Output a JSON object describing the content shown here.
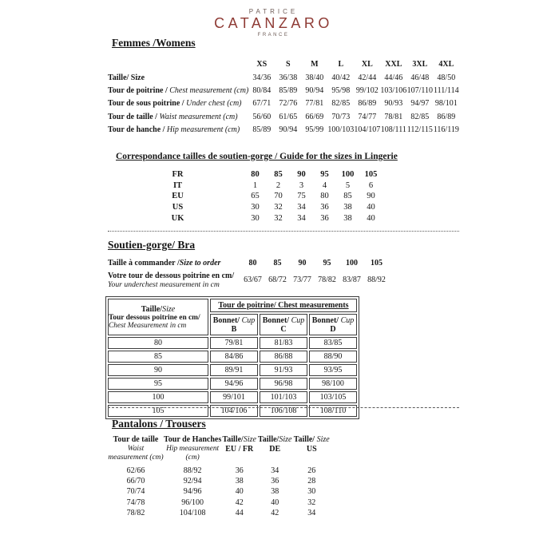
{
  "logo": {
    "top": "PATRICE",
    "main": "CATANZARO",
    "bottom": "FRANCE",
    "accent_color": "#8e3a34"
  },
  "femmes": {
    "heading": "Femmes /Womens",
    "size_headers": [
      "XS",
      "S",
      "M",
      "L",
      "XL",
      "XXL",
      "3XL",
      "4XL"
    ],
    "rows": [
      {
        "fr": "Taille/ Size",
        "en": "",
        "values": [
          "34/36",
          "36/38",
          "38/40",
          "40/42",
          "42/44",
          "44/46",
          "46/48",
          "48/50"
        ]
      },
      {
        "fr": "Tour de poitrine /",
        "en": "Chest measurement (cm)",
        "values": [
          "80/84",
          "85/89",
          "90/94",
          "95/98",
          "99/102",
          "103/106",
          "107/110",
          "111/114"
        ]
      },
      {
        "fr": "Tour de sous poitrine /",
        "en": "Under chest (cm)",
        "values": [
          "67/71",
          "72/76",
          "77/81",
          "82/85",
          "86/89",
          "90/93",
          "94/97",
          "98/101"
        ]
      },
      {
        "fr": "Tour de taille /",
        "en": "Waist measurement (cm)",
        "values": [
          "56/60",
          "61/65",
          "66/69",
          "70/73",
          "74/77",
          "78/81",
          "82/85",
          "86/89"
        ]
      },
      {
        "fr": "Tour de hanche /",
        "en": "Hip measurement (cm)",
        "values": [
          "85/89",
          "90/94",
          "95/99",
          "100/103",
          "104/107",
          "108/111",
          "112/115",
          "116/119"
        ]
      }
    ]
  },
  "lingerie": {
    "heading": "Correspondance tailles de soutien-gorge / Guide for the sizes in Lingerie",
    "rows": [
      {
        "label": "FR",
        "bold_values": true,
        "values": [
          "80",
          "85",
          "90",
          "95",
          "100",
          "105"
        ]
      },
      {
        "label": "IT",
        "bold_values": false,
        "values": [
          "1",
          "2",
          "3",
          "4",
          "5",
          "6"
        ]
      },
      {
        "label": "EU",
        "bold_values": false,
        "values": [
          "65",
          "70",
          "75",
          "80",
          "85",
          "90"
        ]
      },
      {
        "label": "US",
        "bold_values": false,
        "values": [
          "30",
          "32",
          "34",
          "36",
          "38",
          "40"
        ]
      },
      {
        "label": "UK",
        "bold_values": false,
        "values": [
          "30",
          "32",
          "34",
          "36",
          "38",
          "40"
        ]
      }
    ]
  },
  "bra": {
    "heading": "Soutien-gorge/ Bra",
    "rows": [
      {
        "fr": "Taille à commander /",
        "en": "Size to order",
        "en_inline": true,
        "bold_values": true,
        "values": [
          "80",
          "85",
          "90",
          "95",
          "100",
          "105"
        ]
      },
      {
        "fr": "Votre tour de dessous poitrine en cm/",
        "en": "Your underchest measurement in cm",
        "en_inline": false,
        "bold_values": false,
        "values": [
          "63/67",
          "68/72",
          "73/77",
          "78/82",
          "83/87",
          "88/92"
        ]
      }
    ]
  },
  "cup_table": {
    "corner": {
      "line1_fr": "Taille/",
      "line1_en": "Size",
      "line2": "Tour dessous poitrine en cm/",
      "line3": "Chest Measurement in cm"
    },
    "span_header": "Tour de poitrine/ Chest measurements",
    "cup_label_fr": "Bonnet/",
    "cup_label_en": "Cup",
    "cups": [
      "B",
      "C",
      "D"
    ],
    "rows": [
      [
        "80",
        "79/81",
        "81/83",
        "83/85"
      ],
      [
        "85",
        "84/86",
        "86/88",
        "88/90"
      ],
      [
        "90",
        "89/91",
        "91/93",
        "93/95"
      ],
      [
        "95",
        "94/96",
        "96/98",
        "98/100"
      ],
      [
        "100",
        "99/101",
        "101/103",
        "103/105"
      ],
      [
        "105",
        "104/106",
        "106/108",
        "108/110"
      ]
    ]
  },
  "trousers": {
    "heading": "Pantalons / Trousers",
    "columns": [
      {
        "fr": "Tour de taille",
        "en1": "Waist",
        "en2": "measurement (cm)"
      },
      {
        "fr": "Tour de Hanches",
        "en1": "Hip measurement",
        "en2": "(cm)"
      },
      {
        "fr": "Taille/",
        "fri": "Size",
        "sub": "EU / FR"
      },
      {
        "fr": "Taille/",
        "fri": "Size",
        "sub": "DE"
      },
      {
        "fr": "Taille/ ",
        "fri": "Size",
        "sub": "US"
      }
    ],
    "rows": [
      [
        "62/66",
        "88/92",
        "36",
        "34",
        "26"
      ],
      [
        "66/70",
        "92/94",
        "38",
        "36",
        "28"
      ],
      [
        "70/74",
        "94/96",
        "40",
        "38",
        "30"
      ],
      [
        "74/78",
        "96/100",
        "42",
        "40",
        "32"
      ],
      [
        "78/82",
        "104/108",
        "44",
        "42",
        "34"
      ]
    ]
  }
}
